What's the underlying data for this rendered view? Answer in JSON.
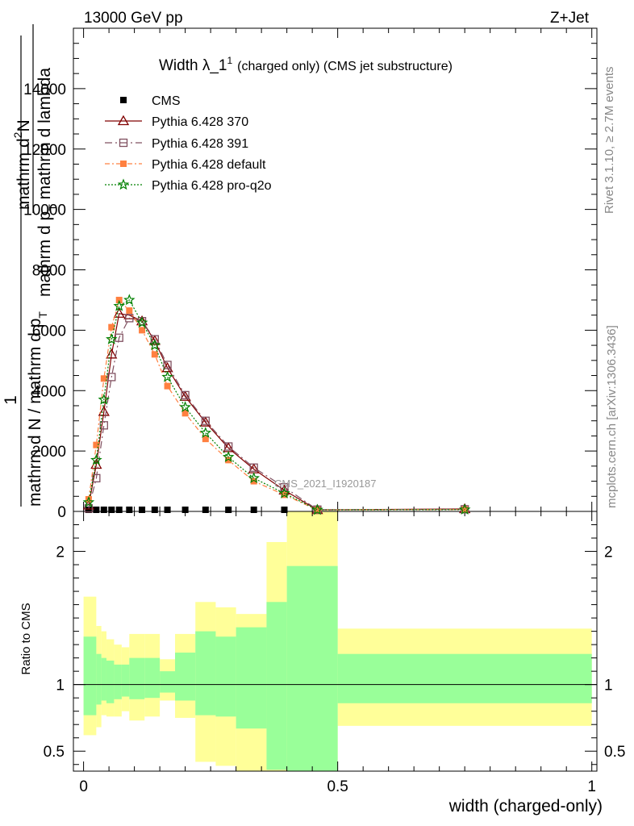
{
  "header": {
    "left": "13000 GeV pp",
    "right": "Z+Jet"
  },
  "side": {
    "rivet": "Rivet 3.1.10, ≥ 2.7M events",
    "mcplots": "mcplots.cern.ch [arXiv:1306.3436]"
  },
  "title": {
    "main": "Width λ_1",
    "sup": "1",
    "suffix": "(charged only) (CMS jet substructure)"
  },
  "ylabel": {
    "one": "1",
    "left_den": "mathrm d N / mathrm d p",
    "left_sub": "T",
    "num": "mathrm d",
    "num_sup": "2",
    "num_N": "N",
    "den": "mathrm d p",
    "den_sub": "T",
    "den_rest": " mathrm d lambda"
  },
  "watermark": "CMS_2021_I1920187",
  "ratio_ylabel": "Ratio to CMS",
  "xlabel": "width (charged-only)",
  "colors": {
    "p370": "#800000",
    "p391": "#805060",
    "pdef": "#ff8040",
    "pq2o": "#008000",
    "band_outer": "#ffff99",
    "band_inner": "#99ff99"
  },
  "chart_data": {
    "type": "line",
    "xlim": [
      -0.02,
      1.01
    ],
    "ylim": [
      0,
      16000
    ],
    "ratio_ylim": [
      0.35,
      2.3
    ],
    "x_ticks": [
      {
        "v": 0,
        "l": "0"
      },
      {
        "v": 0.5,
        "l": "0.5"
      },
      {
        "v": 1,
        "l": "1"
      }
    ],
    "y_ticks": [
      {
        "v": 0,
        "l": "0"
      },
      {
        "v": 2000,
        "l": "2000"
      },
      {
        "v": 4000,
        "l": "4000"
      },
      {
        "v": 6000,
        "l": "6000"
      },
      {
        "v": 8000,
        "l": "8000"
      },
      {
        "v": 10000,
        "l": "10000"
      },
      {
        "v": 12000,
        "l": "12000"
      },
      {
        "v": 14000,
        "l": "14000"
      }
    ],
    "ratio_ticks": [
      {
        "v": 0.5,
        "l": "0.5"
      },
      {
        "v": 1,
        "l": "1"
      },
      {
        "v": 2,
        "l": "2"
      }
    ],
    "bin_edges": [
      0.0,
      0.025,
      0.035,
      0.045,
      0.06,
      0.075,
      0.09,
      0.12,
      0.15,
      0.18,
      0.22,
      0.26,
      0.3,
      0.36,
      0.4,
      0.5,
      1.0
    ],
    "x": [
      0.01,
      0.025,
      0.04,
      0.055,
      0.07,
      0.09,
      0.115,
      0.14,
      0.165,
      0.2,
      0.24,
      0.285,
      0.335,
      0.395,
      0.46,
      0.75
    ],
    "series": [
      {
        "name": "CMS",
        "marker": "square",
        "values": [
          10,
          10,
          10,
          10,
          10,
          10,
          10,
          10,
          10,
          10,
          10,
          10,
          10,
          10,
          10,
          10
        ]
      },
      {
        "name": "Pythia 6.428 370",
        "marker": "triangle",
        "values": [
          200,
          1550,
          3300,
          5200,
          6550,
          6500,
          6300,
          5650,
          4750,
          3800,
          2950,
          2100,
          1400,
          700,
          50,
          80
        ]
      },
      {
        "name": "Pythia 6.428 391",
        "marker": "open-square",
        "values": [
          100,
          1100,
          2850,
          4450,
          5750,
          6400,
          6300,
          5700,
          4850,
          3850,
          3000,
          2150,
          1450,
          800,
          60,
          70
        ]
      },
      {
        "name": "Pythia 6.428 default",
        "marker": "square",
        "values": [
          400,
          2200,
          4400,
          6100,
          7000,
          6650,
          6000,
          5200,
          4150,
          3250,
          2400,
          1700,
          1000,
          550,
          50,
          60
        ]
      },
      {
        "name": "Pythia 6.428 pro-q2o",
        "marker": "star",
        "values": [
          300,
          1700,
          3700,
          5700,
          6800,
          7000,
          6250,
          5500,
          4450,
          3450,
          2600,
          1800,
          1100,
          600,
          50,
          60
        ]
      }
    ],
    "ratio_bands": {
      "outer": [
        [
          0.62,
          1.66
        ],
        [
          0.68,
          1.44
        ],
        [
          0.77,
          1.4
        ],
        [
          0.76,
          1.34
        ],
        [
          0.76,
          1.3
        ],
        [
          0.8,
          1.28
        ],
        [
          0.73,
          1.38
        ],
        [
          0.76,
          1.38
        ],
        [
          0.88,
          1.19
        ],
        [
          0.75,
          1.38
        ],
        [
          0.42,
          1.62
        ],
        [
          0.39,
          1.58
        ],
        [
          0.33,
          1.53
        ],
        [
          0.34,
          2.07
        ],
        [
          0.34,
          2.3
        ],
        [
          0.69,
          1.42
        ]
      ],
      "inner": [
        [
          0.77,
          1.36
        ],
        [
          0.85,
          1.23
        ],
        [
          0.88,
          1.2
        ],
        [
          0.86,
          1.18
        ],
        [
          0.89,
          1.15
        ],
        [
          0.91,
          1.15
        ],
        [
          0.89,
          1.2
        ],
        [
          0.9,
          1.2
        ],
        [
          0.94,
          1.1
        ],
        [
          0.88,
          1.24
        ],
        [
          0.77,
          1.4
        ],
        [
          0.76,
          1.36
        ],
        [
          0.67,
          1.43
        ],
        [
          0.36,
          1.62
        ],
        [
          0.34,
          1.89
        ],
        [
          0.86,
          1.23
        ]
      ]
    }
  }
}
